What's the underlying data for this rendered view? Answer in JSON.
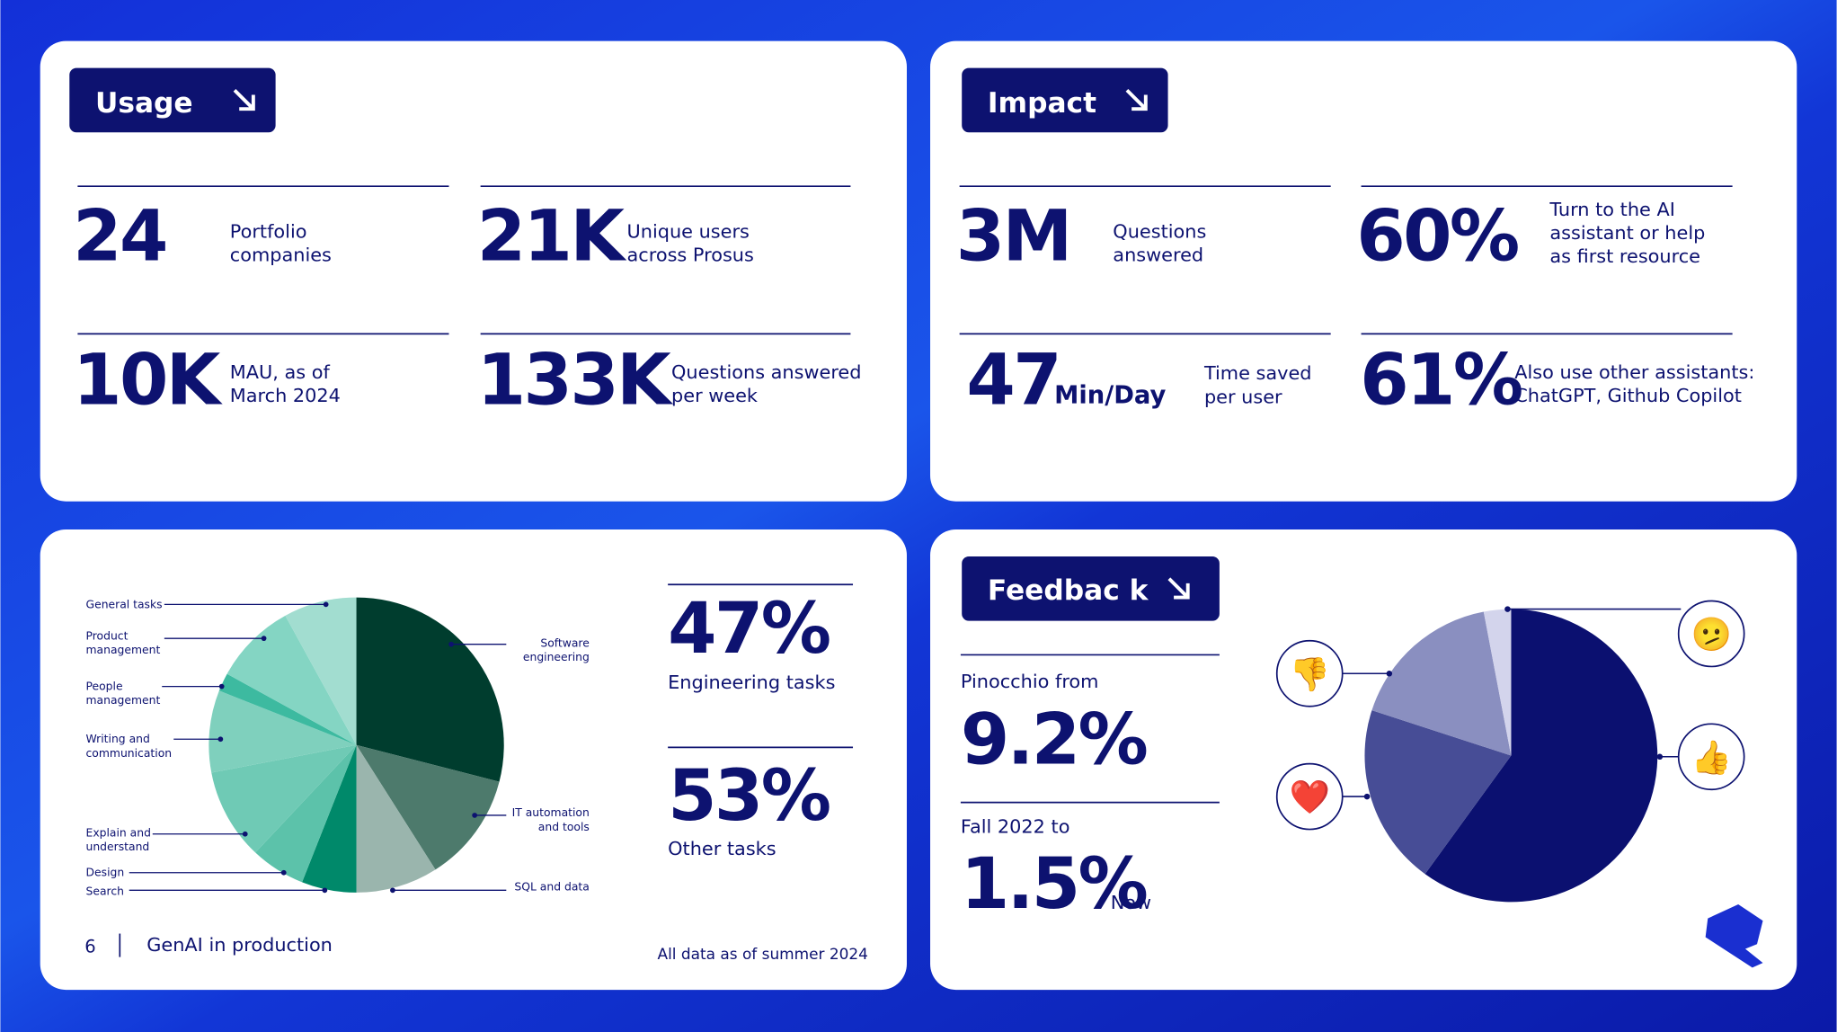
{
  "usage": {
    "title": "Usage",
    "stats": [
      {
        "value": "24",
        "label": [
          "Portfolio",
          "companies"
        ]
      },
      {
        "value": "21K",
        "label": [
          "Unique users",
          "across Prosus"
        ]
      },
      {
        "value": "10K",
        "label": [
          "MAU, as of",
          "March 2024"
        ]
      },
      {
        "value": "133K",
        "label": [
          "Questions answered",
          "per week"
        ]
      }
    ]
  },
  "impact": {
    "title": "Impact",
    "stats": [
      {
        "value": "3M",
        "label": [
          "Questions",
          "answered"
        ]
      },
      {
        "value": "60%",
        "label": [
          "Turn to the AI",
          "assistant or help",
          "as first resource"
        ]
      },
      {
        "value": "47",
        "unit": "Min/Day",
        "label": [
          "Time saved",
          "per user"
        ]
      },
      {
        "value": "61%",
        "label": [
          "Also use other assistants:",
          "ChatGPT, Github Copilot"
        ]
      }
    ]
  },
  "tasks": {
    "stats": [
      {
        "value": "47%",
        "label": "Engineering tasks"
      },
      {
        "value": "53%",
        "label": "Other tasks"
      }
    ]
  },
  "footer": {
    "page": "6",
    "title": "GenAI in production",
    "note": "All data as of summer 2024"
  },
  "feedback": {
    "title": "Feedbac k",
    "from_label": "Pinocchio from",
    "from_value": "9.2%",
    "to_label": "Fall 2022 to",
    "to_value": "1.5%",
    "to_unit": "Now"
  },
  "chart_data": [
    {
      "type": "pie",
      "categories": [
        [
          "Software",
          "engineering"
        ],
        [
          "IT automation",
          "and tools"
        ],
        [
          "SQL and data"
        ],
        [
          "Search"
        ],
        [
          "Design"
        ],
        [
          "Explain and",
          "understand"
        ],
        [
          "Writing and",
          "communication"
        ],
        [
          "People",
          "management"
        ],
        [
          "Product",
          "management"
        ],
        [
          "General tasks"
        ]
      ],
      "values": [
        29,
        12,
        9,
        6,
        6,
        10,
        9,
        2,
        9,
        8
      ],
      "colors": [
        "#003d2e",
        "#4d7a6c",
        "#9ab5ad",
        "#00896a",
        "#5cc2aa",
        "#6fcab5",
        "#7fd0bd",
        "#3dbaa0",
        "#84d5c3",
        "#a2ddd0"
      ]
    },
    {
      "type": "pie",
      "categories": [
        "👍",
        "❤️",
        "👎",
        "🫤"
      ],
      "values": [
        60,
        20,
        17,
        3
      ],
      "colors": [
        "#0b1070",
        "#474d96",
        "#8a8fc0",
        "#d3d4ec"
      ]
    }
  ]
}
